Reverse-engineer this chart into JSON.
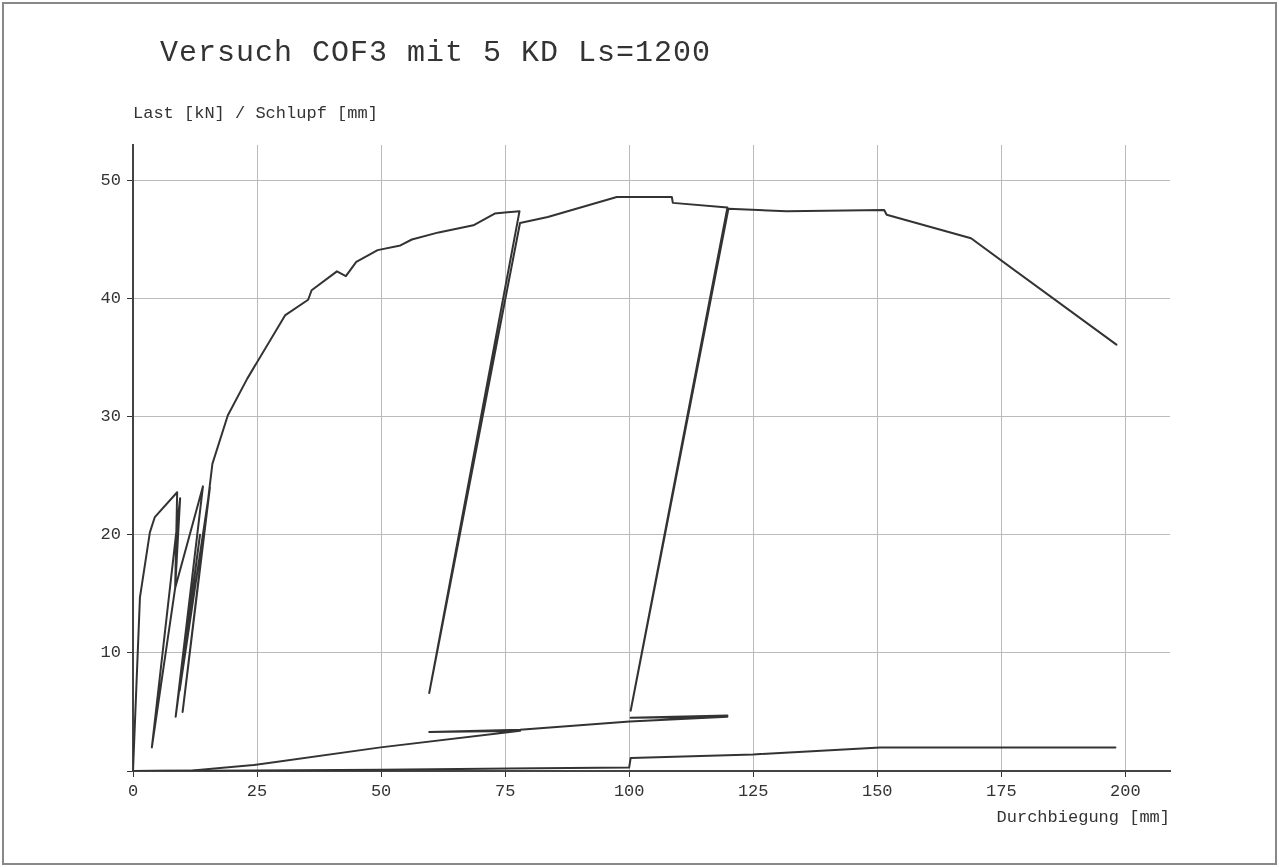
{
  "chart_data": {
    "type": "line",
    "title": "Versuch COF3 mit 5 KD Ls=1200",
    "xlabel": "Durchbiegung [mm]",
    "ylabel": "Last [kN] / Schlupf [mm]",
    "xlim": [
      0,
      209
    ],
    "ylim": [
      0,
      53
    ],
    "xticks": [
      0,
      25,
      50,
      75,
      100,
      125,
      150,
      175,
      200
    ],
    "yticks": [
      {
        "value": 0,
        "label": null
      },
      10,
      20,
      30,
      40,
      50
    ],
    "grid": true,
    "legend": false,
    "marker": "none",
    "line_style": "solid",
    "series": [
      {
        "color": "#333333",
        "x": [
          0,
          1.4,
          3.4,
          4.4,
          8.9,
          8.5,
          9.5,
          3.8,
          8.5,
          14.1,
          8.6,
          13.5,
          9.4,
          15.5,
          10,
          16,
          19.1,
          23,
          30.7,
          35.3,
          36,
          41.1,
          42.9,
          45,
          49.3,
          53.9,
          56.2,
          61.6,
          68.6,
          72.9,
          77.9,
          59.7,
          78,
          83.6,
          97.5,
          104.7,
          108.6,
          108.8,
          119.8,
          100.3,
          120,
          131.7,
          151.4,
          151.9,
          168.9,
          198.2
        ],
        "values": [
          0,
          14.7,
          20.2,
          21.5,
          23.6,
          15.5,
          23.1,
          2,
          15.5,
          24.1,
          4.6,
          20,
          6.8,
          24,
          5,
          26,
          30.1,
          33.2,
          38.6,
          39.9,
          40.7,
          42.3,
          41.9,
          43.1,
          44.1,
          44.5,
          45,
          45.6,
          46.2,
          47.2,
          47.4,
          6.6,
          46.4,
          46.9,
          48.6,
          48.6,
          48.6,
          48.1,
          47.7,
          5.1,
          47.6,
          47.4,
          47.5,
          47.1,
          45.1,
          36.1
        ]
      },
      {
        "color": "#333333",
        "x": [
          0,
          12,
          24.3,
          49.9,
          78,
          59.7,
          78,
          100.1,
          119.8,
          100.3,
          119.8
        ],
        "values": [
          0,
          0.05,
          0.5,
          2,
          3.4,
          3.3,
          3.5,
          4.2,
          4.6,
          4.5,
          4.7
        ]
      },
      {
        "color": "#333333",
        "x": [
          0,
          50,
          100,
          100.3,
          125,
          150.6,
          198
        ],
        "values": [
          0,
          0.1,
          0.3,
          1.1,
          1.4,
          2,
          2
        ]
      }
    ]
  }
}
